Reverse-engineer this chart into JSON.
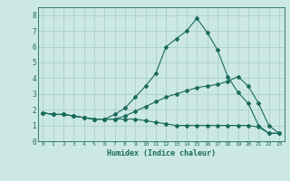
{
  "xlabel": "Humidex (Indice chaleur)",
  "ylabel": "",
  "xlim": [
    -0.5,
    23.5
  ],
  "ylim": [
    0,
    8.5
  ],
  "background_color": "#cce8e4",
  "grid_color": "#aacfca",
  "line_color": "#1a6b5c",
  "xticks": [
    0,
    1,
    2,
    3,
    4,
    5,
    6,
    7,
    8,
    9,
    10,
    11,
    12,
    13,
    14,
    15,
    16,
    17,
    18,
    19,
    20,
    21,
    22,
    23
  ],
  "yticks": [
    0,
    1,
    2,
    3,
    4,
    5,
    6,
    7,
    8
  ],
  "line1_x": [
    0,
    1,
    2,
    3,
    4,
    5,
    6,
    7,
    8,
    9,
    10,
    11,
    12,
    13,
    14,
    15,
    16,
    17,
    18,
    19,
    20,
    21,
    22,
    23
  ],
  "line1_y": [
    1.8,
    1.7,
    1.7,
    1.6,
    1.5,
    1.4,
    1.4,
    1.7,
    2.1,
    2.8,
    3.5,
    4.3,
    6.0,
    6.5,
    7.0,
    7.8,
    6.9,
    5.8,
    4.1,
    3.1,
    2.4,
    1.0,
    0.5,
    0.5
  ],
  "line2_x": [
    0,
    1,
    2,
    3,
    4,
    5,
    6,
    7,
    8,
    9,
    10,
    11,
    12,
    13,
    14,
    15,
    16,
    17,
    18,
    19,
    20,
    21,
    22,
    23
  ],
  "line2_y": [
    1.8,
    1.7,
    1.7,
    1.6,
    1.5,
    1.4,
    1.4,
    1.4,
    1.6,
    1.9,
    2.2,
    2.5,
    2.8,
    3.0,
    3.2,
    3.4,
    3.5,
    3.6,
    3.8,
    4.1,
    3.5,
    2.4,
    1.0,
    0.5
  ],
  "line3_x": [
    0,
    1,
    2,
    3,
    4,
    5,
    6,
    7,
    8,
    9,
    10,
    11,
    12,
    13,
    14,
    15,
    16,
    17,
    18,
    19,
    20,
    21,
    22,
    23
  ],
  "line3_y": [
    1.8,
    1.7,
    1.7,
    1.6,
    1.5,
    1.4,
    1.4,
    1.4,
    1.4,
    1.4,
    1.3,
    1.2,
    1.1,
    1.0,
    1.0,
    1.0,
    1.0,
    1.0,
    1.0,
    1.0,
    1.0,
    0.9,
    0.5,
    0.5
  ]
}
